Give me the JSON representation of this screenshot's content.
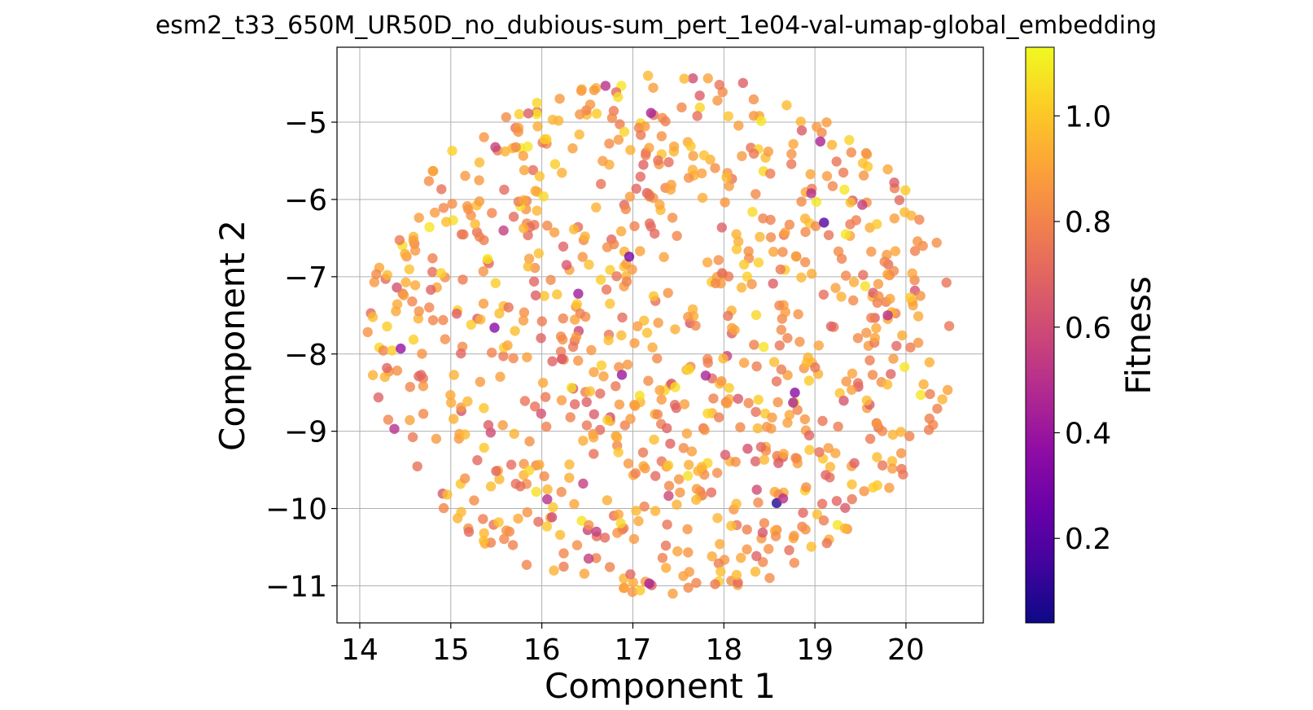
{
  "chart_data": {
    "type": "scatter",
    "title": "esm2_t33_650M_UR50D_no_dubious-sum_pert_1e04-val-umap-global_embedding",
    "xlabel": "Component 1",
    "ylabel": "Component 2",
    "xlim": [
      13.75,
      20.85
    ],
    "ylim": [
      -11.48,
      -4.03
    ],
    "x_ticks": [
      14,
      15,
      16,
      17,
      18,
      19,
      20
    ],
    "y_ticks": [
      -5,
      -6,
      -7,
      -8,
      -9,
      -10,
      -11
    ],
    "x_tick_labels": [
      "14",
      "15",
      "16",
      "17",
      "18",
      "19",
      "20"
    ],
    "y_tick_labels": [
      "−5",
      "−6",
      "−7",
      "−8",
      "−9",
      "−10",
      "−11"
    ],
    "grid": true,
    "colorbar": {
      "label": "Fitness",
      "colormap": "plasma",
      "range": [
        0.04,
        1.13
      ],
      "ticks": [
        0.2,
        0.4,
        0.6,
        0.8,
        1.0
      ],
      "tick_labels": [
        "0.2",
        "0.4",
        "0.6",
        "0.8",
        "1.0"
      ]
    },
    "point_count_approx": 900,
    "distribution": {
      "center": [
        17.3,
        -7.75
      ],
      "fitness_typical": 0.85,
      "low_fitness_points": [
        {
          "x": 18.58,
          "y": -9.93,
          "fitness": 0.08
        },
        {
          "x": 19.1,
          "y": -6.3,
          "fitness": 0.2
        },
        {
          "x": 16.96,
          "y": -6.74,
          "fitness": 0.3
        },
        {
          "x": 15.48,
          "y": -7.66,
          "fitness": 0.35
        },
        {
          "x": 14.45,
          "y": -7.93,
          "fitness": 0.38
        },
        {
          "x": 18.78,
          "y": -8.5,
          "fitness": 0.35
        },
        {
          "x": 16.88,
          "y": -8.27,
          "fitness": 0.4
        },
        {
          "x": 16.4,
          "y": -7.22,
          "fitness": 0.42
        },
        {
          "x": 17.18,
          "y": -10.97,
          "fitness": 0.45
        },
        {
          "x": 19.06,
          "y": -5.25,
          "fitness": 0.45
        },
        {
          "x": 18.76,
          "y": -8.63,
          "fitness": 0.45
        },
        {
          "x": 14.38,
          "y": -8.97,
          "fitness": 0.5
        },
        {
          "x": 16.06,
          "y": -9.88,
          "fitness": 0.5
        },
        {
          "x": 18.96,
          "y": -5.92,
          "fitness": 0.5
        },
        {
          "x": 19.52,
          "y": -6.07,
          "fitness": 0.55
        },
        {
          "x": 16.7,
          "y": -4.53,
          "fitness": 0.5
        },
        {
          "x": 17.2,
          "y": -4.88,
          "fitness": 0.45
        },
        {
          "x": 18.65,
          "y": -9.87,
          "fitness": 0.5
        },
        {
          "x": 19.8,
          "y": -7.5,
          "fitness": 0.5
        },
        {
          "x": 16.6,
          "y": -10.3,
          "fitness": 0.55
        },
        {
          "x": 17.8,
          "y": -8.28,
          "fitness": 0.45
        }
      ]
    }
  }
}
